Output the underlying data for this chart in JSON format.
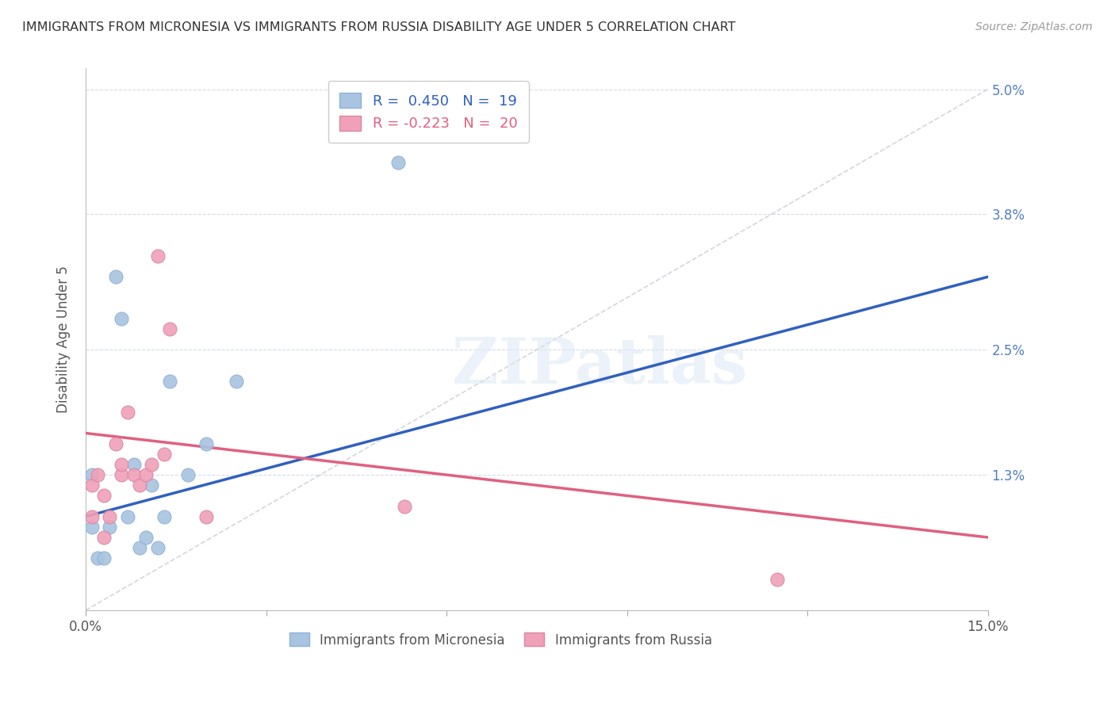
{
  "title": "IMMIGRANTS FROM MICRONESIA VS IMMIGRANTS FROM RUSSIA DISABILITY AGE UNDER 5 CORRELATION CHART",
  "source": "Source: ZipAtlas.com",
  "ylabel": "Disability Age Under 5",
  "x_min": 0.0,
  "x_max": 0.15,
  "y_min": 0.0,
  "y_max": 0.05,
  "micronesia_color": "#a8c4e0",
  "russia_color": "#f0a0b8",
  "micronesia_line_color": "#3060c0",
  "russia_line_color": "#e06080",
  "diag_line_color": "#c8ccd8",
  "watermark_text": "ZIPatlas",
  "mic_line_x": [
    0.0,
    0.15
  ],
  "mic_line_y": [
    0.009,
    0.032
  ],
  "rus_line_x": [
    0.0,
    0.15
  ],
  "rus_line_y": [
    0.017,
    0.007
  ],
  "micronesia_x": [
    0.001,
    0.001,
    0.002,
    0.003,
    0.004,
    0.005,
    0.006,
    0.007,
    0.008,
    0.009,
    0.01,
    0.011,
    0.012,
    0.013,
    0.014,
    0.017,
    0.02,
    0.025,
    0.052
  ],
  "micronesia_y": [
    0.008,
    0.013,
    0.005,
    0.005,
    0.008,
    0.032,
    0.028,
    0.009,
    0.014,
    0.006,
    0.007,
    0.012,
    0.006,
    0.009,
    0.022,
    0.013,
    0.016,
    0.022,
    0.043
  ],
  "russia_x": [
    0.001,
    0.001,
    0.002,
    0.003,
    0.003,
    0.004,
    0.005,
    0.006,
    0.006,
    0.007,
    0.008,
    0.009,
    0.01,
    0.011,
    0.012,
    0.013,
    0.02,
    0.053,
    0.115,
    0.014
  ],
  "russia_y": [
    0.012,
    0.009,
    0.013,
    0.011,
    0.007,
    0.009,
    0.016,
    0.013,
    0.014,
    0.019,
    0.013,
    0.012,
    0.013,
    0.014,
    0.034,
    0.015,
    0.009,
    0.01,
    0.003,
    0.027
  ],
  "legend_R_mic": "R =  0.450",
  "legend_N_mic": "N =  19",
  "legend_R_rus": "R = -0.223",
  "legend_N_rus": "N =  20"
}
